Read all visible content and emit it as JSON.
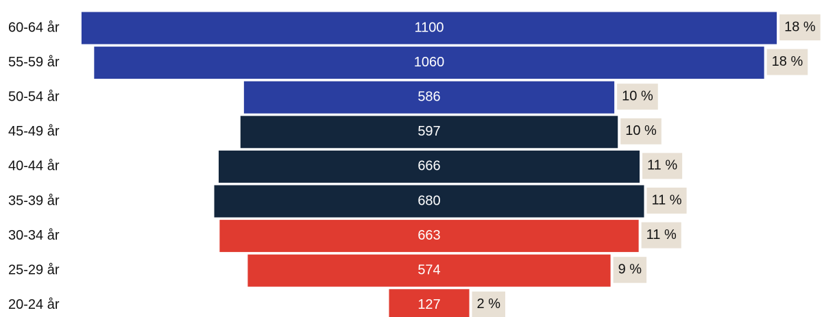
{
  "chart_data": {
    "type": "funnel",
    "categories": [
      "60-64 år",
      "55-59 år",
      "50-54 år",
      "45-49 år",
      "40-44 år",
      "35-39 år",
      "30-34 år",
      "25-29 år",
      "20-24 år"
    ],
    "values": [
      1100,
      1060,
      586,
      597,
      666,
      680,
      663,
      574,
      127
    ],
    "colors": [
      "#2a3ea0",
      "#2a3ea0",
      "#2a3ea0",
      "#13263c",
      "#13263c",
      "#13263c",
      "#e03b30",
      "#e03b30",
      "#e03b30"
    ],
    "share_labels": [
      "18 %",
      "18 %",
      "10 %",
      "10 %",
      "11 %",
      "11 %",
      "11 %",
      "9 %",
      "2 %"
    ]
  }
}
